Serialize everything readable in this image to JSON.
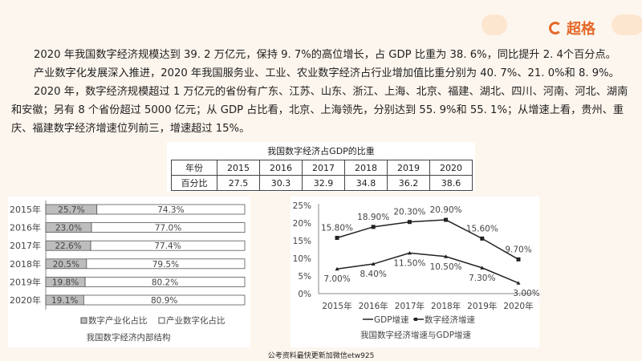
{
  "logo": {
    "text": "超格",
    "color": "#e4692a"
  },
  "paragraphs": [
    "2020 年我国数字经济规模达到 39. 2 万亿元，保持 9. 7%的高位增长，占 GDP 比重为 38. 6%，同比提升 2. 4个百分点。",
    "产业数字化发展深入推进，2020 年我国服务业、工业、农业数字经济占行业增加值比重分别为 40. 7%、21. 0%和 8. 9%。",
    "2020 年，数字经济规模超过 1 万亿元的省份有广东、江苏、山东、浙江、上海、北京、福建、湖北、四川、河南、河北、湖南和安徽；另有 8 个省份超过 5000 亿元；从 GDP 占比看，北京、上海领先，分别达到 55. 9%和 55. 1%；从增速上看，贵州、重庆、福建数字经济增速位列前三，增速超过 15%。"
  ],
  "table": {
    "title": "我国数字经济占GDP的比重",
    "header": [
      "年份",
      "2015",
      "2016",
      "2017",
      "2018",
      "2019",
      "2020"
    ],
    "row": [
      "百分比",
      "27.5",
      "30.3",
      "32.9",
      "34.8",
      "36.2",
      "38.6"
    ]
  },
  "chart_data": [
    {
      "type": "bar",
      "stacked": true,
      "orientation": "horizontal",
      "title": "我国数字经济内部结构",
      "categories": [
        "2015年",
        "2016年",
        "2017年",
        "2018年",
        "2019年",
        "2020年"
      ],
      "series": [
        {
          "name": "数字产业化占比",
          "values": [
            25.7,
            23.0,
            22.6,
            20.5,
            19.8,
            19.1
          ],
          "labels": [
            "25.7%",
            "23.0%",
            "22.6%",
            "20.5%",
            "19.8%",
            "19.1%"
          ],
          "color": "#bdbdbd"
        },
        {
          "name": "产业数字化占比",
          "values": [
            74.3,
            77.0,
            77.4,
            79.5,
            80.2,
            80.9
          ],
          "labels": [
            "74.3%",
            "77.0%",
            "77.4%",
            "79.5%",
            "80.2%",
            "80.9%"
          ],
          "color": "#ffffff"
        }
      ],
      "legend": "bottom"
    },
    {
      "type": "line",
      "title": "我国数字经济增速与GDP增速",
      "categories": [
        "2015年",
        "2016年",
        "2017年",
        "2018年",
        "2019年",
        "2020年"
      ],
      "yticks": [
        "0%",
        "5%",
        "10%",
        "15%",
        "20%",
        "25%"
      ],
      "ylim": [
        0,
        25
      ],
      "series": [
        {
          "name": "GDP增速",
          "values": [
            7.0,
            8.4,
            11.5,
            10.5,
            7.3,
            3.0
          ],
          "labels": [
            "7.00%",
            "8.40%",
            "11.50%",
            "10.50%",
            "7.30%",
            "3.00%"
          ]
        },
        {
          "name": "数字经济增速",
          "values": [
            15.8,
            18.9,
            20.3,
            20.9,
            15.6,
            9.7
          ],
          "labels": [
            "15.80%",
            "18.90%",
            "20.30%",
            "20.90%",
            "15.60%",
            "9.70%"
          ]
        }
      ],
      "legend": "bottom"
    }
  ],
  "footer": "公考资料最快更新加微信etw925"
}
